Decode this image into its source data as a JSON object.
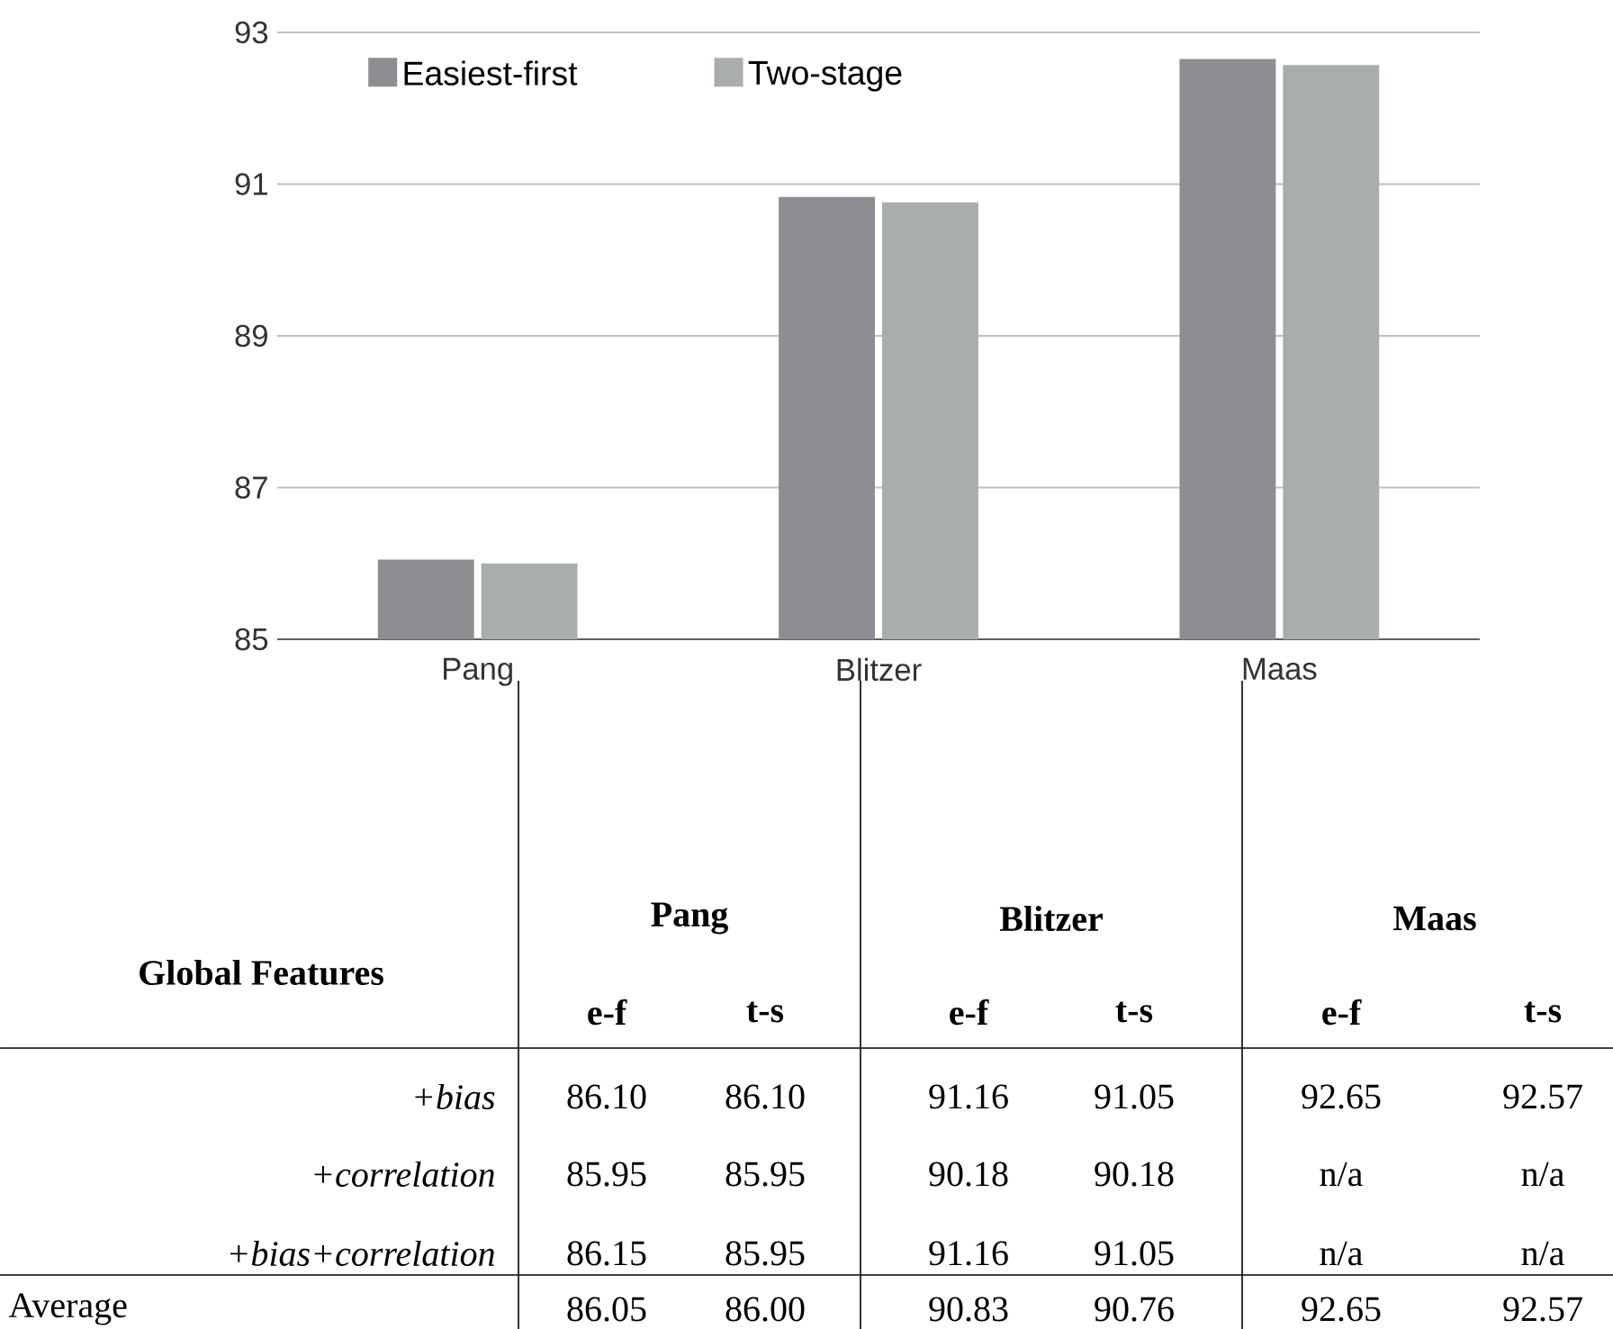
{
  "chart_data": {
    "type": "bar",
    "categories": [
      "Pang",
      "Blitzer",
      "Maas"
    ],
    "series": [
      {
        "name": "Easiest-first",
        "color": "#8e8d92",
        "values": [
          86.05,
          90.83,
          92.65
        ]
      },
      {
        "name": "Two-stage",
        "color": "#a9adac",
        "values": [
          86.0,
          90.76,
          92.57
        ]
      }
    ],
    "ylim": [
      85,
      93
    ],
    "yticks": [
      85,
      87,
      89,
      91,
      93
    ],
    "grid": "y",
    "legend": "top",
    "annotations": [
      "Global Features",
      "e-f",
      "t-s",
      "+bias",
      "86.10",
      "86.10",
      "91.16",
      "91.05",
      "92.65",
      "92.57",
      "+correlation",
      "85.95",
      "85.95",
      "90.18",
      "90.18",
      "n/a",
      "n/a",
      "+bias+correlation",
      "86.15",
      "85.95",
      "91.16",
      "91.05",
      "n/a",
      "n/a",
      "Average",
      "86.05",
      "86.00",
      "90.83",
      "90.76",
      "92.65",
      "92.57"
    ]
  }
}
